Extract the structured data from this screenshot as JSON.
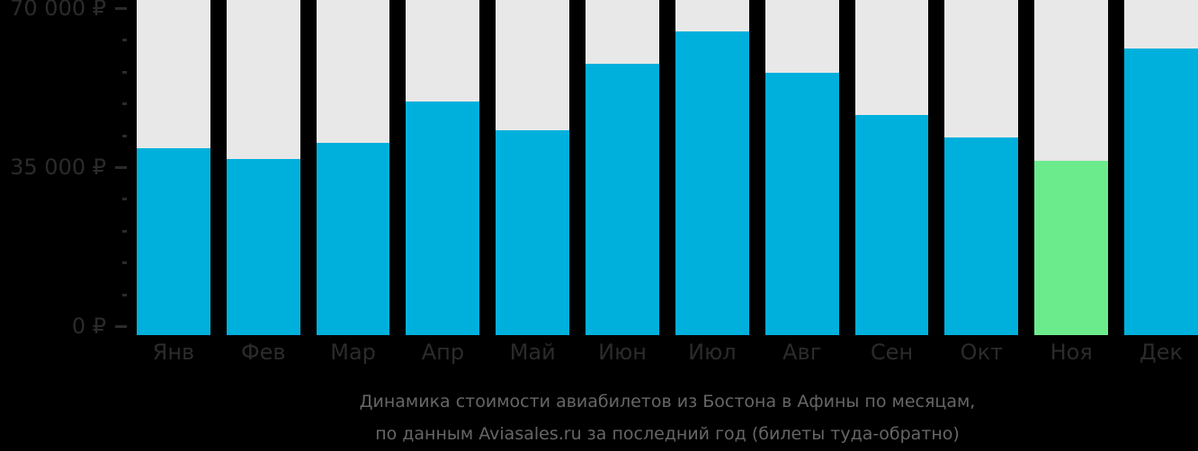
{
  "chart_data": {
    "type": "bar",
    "title_lines": [
      "Динамика стоимости авиабилетов из Бостона в Афины по месяцам,",
      "по данным Aviasales.ru за последний год (билеты туда-обратно)"
    ],
    "categories": [
      "Янв",
      "Фев",
      "Мар",
      "Апр",
      "Май",
      "Июн",
      "Июл",
      "Авг",
      "Сен",
      "Окт",
      "Ноя",
      "Дек"
    ],
    "category_keys": [
      "jan",
      "feb",
      "mar",
      "apr",
      "may",
      "jun",
      "jul",
      "aug",
      "sep",
      "oct",
      "nov",
      "dec"
    ],
    "values": [
      39200,
      36800,
      40300,
      49400,
      43100,
      57700,
      64900,
      55800,
      46500,
      41500,
      36400,
      61100
    ],
    "unit": "₽",
    "highlight_index": 10,
    "highlight_meaning": "cheapest-month",
    "y_axis": {
      "min": 0,
      "max": 70000,
      "major_tick_labels": [
        "70 000 ₽",
        "35 000 ₽",
        "0 ₽"
      ],
      "minor_ticks_per_major": 5
    },
    "grid": false,
    "legend": "none",
    "colors": {
      "bar": "#00b0dc",
      "highlight_bar": "#6ceb8c",
      "column_track": "#e8e8e8",
      "axis_text": "#2b2b2b",
      "title_text": "#666666",
      "background": "#000000"
    }
  }
}
